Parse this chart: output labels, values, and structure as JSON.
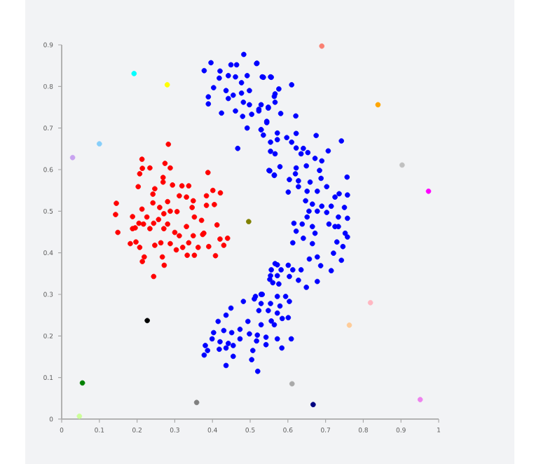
{
  "chart_data": {
    "type": "scatter",
    "marker": "circle",
    "xlim": [
      0,
      1
    ],
    "ylim": [
      0,
      0.9
    ],
    "xticks": [
      0,
      0.1,
      0.2,
      0.3,
      0.4,
      0.5,
      0.6,
      0.7,
      0.8,
      0.9,
      1
    ],
    "yticks": [
      0,
      0.1,
      0.2,
      0.3,
      0.4,
      0.5,
      0.6,
      0.7,
      0.8,
      0.9
    ],
    "series": [
      {
        "color": "#0000ff",
        "x": [
          0.483,
          0.396,
          0.449,
          0.464,
          0.517,
          0.378,
          0.42,
          0.442,
          0.461,
          0.492,
          0.532,
          0.554,
          0.418,
          0.477,
          0.403,
          0.436,
          0.455,
          0.477,
          0.498,
          0.566,
          0.389,
          0.442,
          0.482,
          0.498,
          0.529,
          0.548,
          0.389,
          0.424,
          0.461,
          0.48,
          0.504,
          0.523,
          0.544,
          0.492,
          0.529,
          0.535,
          0.554,
          0.572,
          0.467,
          0.554,
          0.566,
          0.55,
          0.564,
          0.518,
          0.535,
          0.556,
          0.576,
          0.61,
          0.564,
          0.566,
          0.523,
          0.548,
          0.581,
          0.621,
          0.544,
          0.529,
          0.572,
          0.622,
          0.675,
          0.597,
          0.61,
          0.742,
          0.622,
          0.641,
          0.635,
          0.653,
          0.707,
          0.672,
          0.69,
          0.579,
          0.622,
          0.649,
          0.552,
          0.564,
          0.62,
          0.684,
          0.604,
          0.628,
          0.659,
          0.688,
          0.757,
          0.601,
          0.628,
          0.651,
          0.678,
          0.703,
          0.736,
          0.758,
          0.725,
          0.647,
          0.665,
          0.69,
          0.715,
          0.75,
          0.656,
          0.678,
          0.703,
          0.734,
          0.758,
          0.651,
          0.616,
          0.638,
          0.665,
          0.709,
          0.734,
          0.622,
          0.672,
          0.752,
          0.725,
          0.758,
          0.613,
          0.641,
          0.665,
          0.73,
          0.746,
          0.721,
          0.657,
          0.678,
          0.742,
          0.687,
          0.715,
          0.678,
          0.572,
          0.601,
          0.556,
          0.582,
          0.613,
          0.635,
          0.552,
          0.572,
          0.604,
          0.628,
          0.649,
          0.576,
          0.514,
          0.532,
          0.572,
          0.594,
          0.604,
          0.529,
          0.554,
          0.579,
          0.523,
          0.548,
          0.572,
          0.601,
          0.556,
          0.585,
          0.529,
          0.564,
          0.519,
          0.572,
          0.609,
          0.542,
          0.584,
          0.566,
          0.554,
          0.56,
          0.529,
          0.511,
          0.482,
          0.449,
          0.415,
          0.436,
          0.494,
          0.403,
          0.43,
          0.451,
          0.473,
          0.498,
          0.542,
          0.399,
          0.42,
          0.442,
          0.473,
          0.517,
          0.381,
          0.418,
          0.436,
          0.455,
          0.387,
          0.507,
          0.378,
          0.455,
          0.504,
          0.436,
          0.52
        ],
        "values": [
          0.877,
          0.857,
          0.852,
          0.852,
          0.855,
          0.838,
          0.837,
          0.826,
          0.823,
          0.826,
          0.823,
          0.823,
          0.82,
          0.809,
          0.797,
          0.79,
          0.779,
          0.784,
          0.79,
          0.782,
          0.775,
          0.771,
          0.762,
          0.756,
          0.756,
          0.75,
          0.758,
          0.736,
          0.741,
          0.728,
          0.733,
          0.741,
          0.716,
          0.7,
          0.696,
          0.683,
          0.666,
          0.672,
          0.651,
          0.644,
          0.638,
          0.598,
          0.587,
          0.856,
          0.822,
          0.822,
          0.794,
          0.804,
          0.776,
          0.762,
          0.745,
          0.748,
          0.735,
          0.729,
          0.713,
          0.696,
          0.688,
          0.687,
          0.682,
          0.677,
          0.666,
          0.669,
          0.652,
          0.651,
          0.638,
          0.641,
          0.645,
          0.627,
          0.621,
          0.607,
          0.604,
          0.609,
          0.597,
          0.586,
          0.59,
          0.598,
          0.576,
          0.573,
          0.57,
          0.579,
          0.582,
          0.546,
          0.559,
          0.548,
          0.548,
          0.559,
          0.542,
          0.539,
          0.534,
          0.525,
          0.517,
          0.512,
          0.512,
          0.509,
          0.5,
          0.5,
          0.497,
          0.486,
          0.483,
          0.486,
          0.471,
          0.469,
          0.463,
          0.469,
          0.463,
          0.452,
          0.447,
          0.447,
          0.463,
          0.438,
          0.424,
          0.435,
          0.422,
          0.426,
          0.415,
          0.399,
          0.385,
          0.39,
          0.382,
          0.369,
          0.357,
          0.331,
          0.371,
          0.37,
          0.359,
          0.359,
          0.359,
          0.359,
          0.336,
          0.345,
          0.343,
          0.334,
          0.317,
          0.325,
          0.295,
          0.3,
          0.295,
          0.295,
          0.283,
          0.278,
          0.278,
          0.272,
          0.261,
          0.261,
          0.255,
          0.244,
          0.236,
          0.242,
          0.227,
          0.227,
          0.202,
          0.193,
          0.193,
          0.179,
          0.171,
          0.374,
          0.345,
          0.328,
          0.3,
          0.289,
          0.283,
          0.267,
          0.235,
          0.25,
          0.235,
          0.208,
          0.213,
          0.208,
          0.216,
          0.205,
          0.197,
          0.193,
          0.186,
          0.182,
          0.193,
          0.188,
          0.177,
          0.168,
          0.171,
          0.177,
          0.165,
          0.165,
          0.154,
          0.151,
          0.143,
          0.129,
          0.115
        ]
      },
      {
        "color": "#ff0000",
        "x": [
          0.283,
          0.213,
          0.214,
          0.234,
          0.274,
          0.288,
          0.207,
          0.269,
          0.388,
          0.203,
          0.247,
          0.269,
          0.294,
          0.319,
          0.337,
          0.242,
          0.312,
          0.331,
          0.349,
          0.384,
          0.401,
          0.421,
          0.145,
          0.213,
          0.242,
          0.26,
          0.281,
          0.288,
          0.306,
          0.346,
          0.384,
          0.405,
          0.143,
          0.188,
          0.226,
          0.257,
          0.271,
          0.352,
          0.371,
          0.205,
          0.244,
          0.281,
          0.331,
          0.412,
          0.149,
          0.195,
          0.234,
          0.271,
          0.3,
          0.377,
          0.188,
          0.217,
          0.182,
          0.197,
          0.207,
          0.219,
          0.214,
          0.247,
          0.263,
          0.267,
          0.272,
          0.244,
          0.288,
          0.304,
          0.321,
          0.337,
          0.333,
          0.352,
          0.362,
          0.39,
          0.408,
          0.42,
          0.43,
          0.44,
          0.312,
          0.349,
          0.374
        ],
        "values": [
          0.661,
          0.625,
          0.603,
          0.604,
          0.615,
          0.604,
          0.59,
          0.581,
          0.593,
          0.559,
          0.554,
          0.57,
          0.563,
          0.561,
          0.561,
          0.541,
          0.537,
          0.534,
          0.525,
          0.537,
          0.55,
          0.544,
          0.519,
          0.505,
          0.52,
          0.509,
          0.523,
          0.5,
          0.499,
          0.509,
          0.514,
          0.516,
          0.492,
          0.487,
          0.486,
          0.48,
          0.494,
          0.486,
          0.478,
          0.471,
          0.471,
          0.469,
          0.463,
          0.467,
          0.449,
          0.46,
          0.458,
          0.458,
          0.449,
          0.447,
          0.458,
          0.469,
          0.422,
          0.426,
          0.413,
          0.39,
          0.379,
          0.418,
          0.424,
          0.39,
          0.37,
          0.343,
          0.422,
          0.407,
          0.413,
          0.424,
          0.394,
          0.394,
          0.413,
          0.415,
          0.393,
          0.433,
          0.418,
          0.435,
          0.441,
          0.441,
          0.444
        ]
      },
      {
        "color": "#00ffff",
        "x": [
          0.192
        ],
        "values": [
          0.831
        ]
      },
      {
        "color": "#ffff00",
        "x": [
          0.28
        ],
        "values": [
          0.804
        ]
      },
      {
        "color": "#87cefa",
        "x": [
          0.1
        ],
        "values": [
          0.662
        ]
      },
      {
        "color": "#c8a2f0",
        "x": [
          0.029
        ],
        "values": [
          0.629
        ]
      },
      {
        "color": "#808000",
        "x": [
          0.496
        ],
        "values": [
          0.475
        ]
      },
      {
        "color": "#fa8072",
        "x": [
          0.69
        ],
        "values": [
          0.897
        ]
      },
      {
        "color": "#ffa500",
        "x": [
          0.839
        ],
        "values": [
          0.756
        ]
      },
      {
        "color": "#c0c0c0",
        "x": [
          0.903
        ],
        "values": [
          0.611
        ]
      },
      {
        "color": "#ff00ff",
        "x": [
          0.973
        ],
        "values": [
          0.548
        ]
      },
      {
        "color": "#000000",
        "x": [
          0.227
        ],
        "values": [
          0.237
        ]
      },
      {
        "color": "#008000",
        "x": [
          0.055
        ],
        "values": [
          0.087
        ]
      },
      {
        "color": "#ccff99",
        "x": [
          0.047
        ],
        "values": [
          0.007
        ]
      },
      {
        "color": "#808080",
        "x": [
          0.358
        ],
        "values": [
          0.04
        ]
      },
      {
        "color": "#ffb6c1",
        "x": [
          0.819
        ],
        "values": [
          0.28
        ]
      },
      {
        "color": "#ffcc99",
        "x": [
          0.763
        ],
        "values": [
          0.226
        ]
      },
      {
        "color": "#a9a9a9",
        "x": [
          0.611
        ],
        "values": [
          0.085
        ]
      },
      {
        "color": "#000080",
        "x": [
          0.667
        ],
        "values": [
          0.035
        ]
      },
      {
        "color": "#ee82ee",
        "x": [
          0.951
        ],
        "values": [
          0.047
        ]
      }
    ]
  }
}
